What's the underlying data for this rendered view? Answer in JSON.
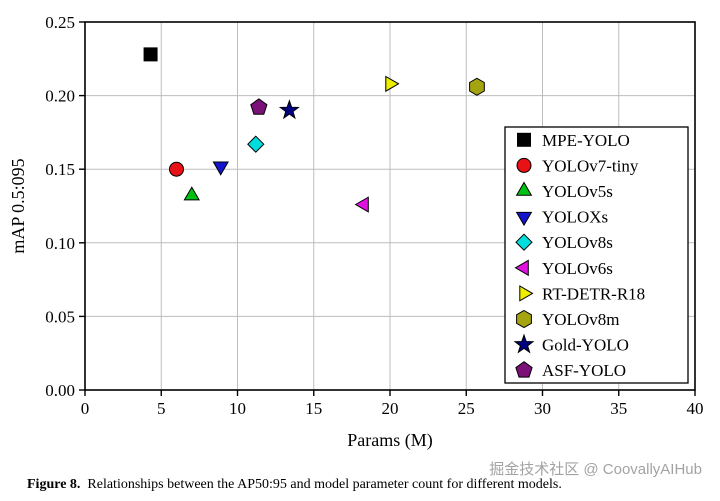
{
  "figure": {
    "caption_label": "Figure 8.",
    "caption_text": "Relationships between the AP50:95 and model parameter count for different models.",
    "watermark": "掘金技术社区 @ CoovallyAIHub"
  },
  "chart_data": {
    "type": "scatter",
    "title": "",
    "xlabel": "Params (M)",
    "ylabel": "mAP 0.5:095",
    "xlim": [
      0,
      40
    ],
    "ylim": [
      0,
      0.25
    ],
    "xticks": [
      0,
      5,
      10,
      15,
      20,
      25,
      30,
      35,
      40
    ],
    "xtick_labels": [
      "0",
      "5",
      "10",
      "15",
      "20",
      "25",
      "30",
      "35",
      "40"
    ],
    "yticks": [
      0,
      0.05,
      0.1,
      0.15,
      0.2,
      0.25
    ],
    "ytick_labels": [
      "0.00",
      "0.05",
      "0.10",
      "0.15",
      "0.20",
      "0.25"
    ],
    "grid": true,
    "legend_position": "inside-right",
    "series": [
      {
        "name": "MPE-YOLO",
        "marker": "square",
        "color": "#000000",
        "x": 4.3,
        "y": 0.228
      },
      {
        "name": "YOLOv7-tiny",
        "marker": "circle",
        "color": "#e81216",
        "x": 6.0,
        "y": 0.15
      },
      {
        "name": "YOLOv5s",
        "marker": "triangle-up",
        "color": "#00c012",
        "x": 7.0,
        "y": 0.132
      },
      {
        "name": "YOLOXs",
        "marker": "triangle-down",
        "color": "#1414cc",
        "x": 8.9,
        "y": 0.152
      },
      {
        "name": "YOLOv8s",
        "marker": "diamond",
        "color": "#00dddd",
        "x": 11.2,
        "y": 0.167
      },
      {
        "name": "YOLOv6s",
        "marker": "triangle-left",
        "color": "#e012e0",
        "x": 18.3,
        "y": 0.126
      },
      {
        "name": "RT-DETR-R18",
        "marker": "triangle-right",
        "color": "#eeee00",
        "x": 20.0,
        "y": 0.208
      },
      {
        "name": "YOLOv8m",
        "marker": "hexagon",
        "color": "#a4a410",
        "x": 25.7,
        "y": 0.206
      },
      {
        "name": "Gold-YOLO",
        "marker": "star",
        "color": "#000080",
        "x": 13.4,
        "y": 0.19
      },
      {
        "name": "ASF-YOLO",
        "marker": "pentagon",
        "color": "#7a1078",
        "x": 11.4,
        "y": 0.192
      }
    ]
  }
}
